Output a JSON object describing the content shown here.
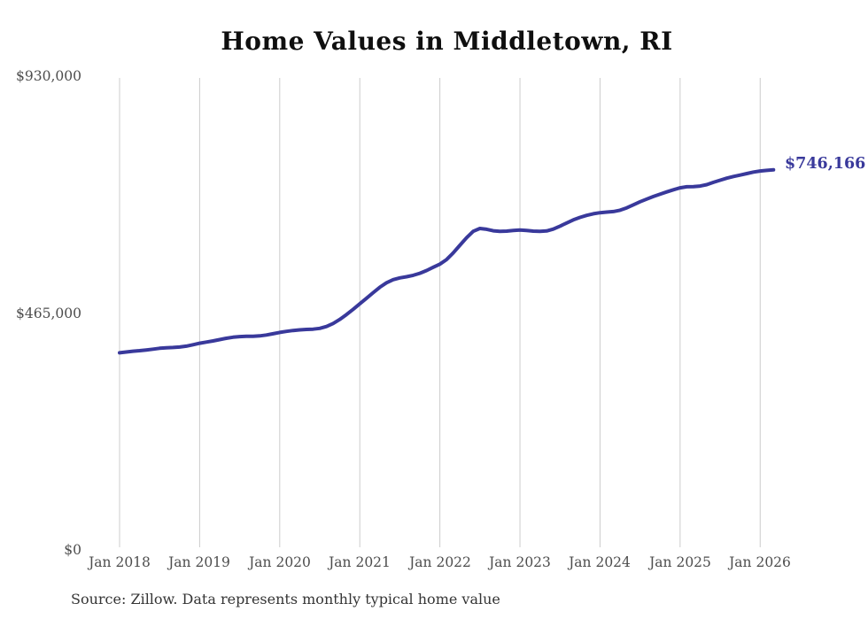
{
  "chart_data": {
    "type": "line",
    "title": "Home Values in Middletown, RI",
    "series_name": "Monthly typical home value",
    "x": [
      "2018-01",
      "2018-02",
      "2018-03",
      "2018-04",
      "2018-05",
      "2018-06",
      "2018-07",
      "2018-08",
      "2018-09",
      "2018-10",
      "2018-11",
      "2018-12",
      "2019-01",
      "2019-02",
      "2019-03",
      "2019-04",
      "2019-05",
      "2019-06",
      "2019-07",
      "2019-08",
      "2019-09",
      "2019-10",
      "2019-11",
      "2019-12",
      "2020-01",
      "2020-02",
      "2020-03",
      "2020-04",
      "2020-05",
      "2020-06",
      "2020-07",
      "2020-08",
      "2020-09",
      "2020-10",
      "2020-11",
      "2020-12",
      "2021-01",
      "2021-02",
      "2021-03",
      "2021-04",
      "2021-05",
      "2021-06",
      "2021-07",
      "2021-08",
      "2021-09",
      "2021-10",
      "2021-11",
      "2021-12",
      "2022-01",
      "2022-02",
      "2022-03",
      "2022-04",
      "2022-05",
      "2022-06",
      "2022-07",
      "2022-08",
      "2022-09",
      "2022-10",
      "2022-11",
      "2022-12",
      "2023-01",
      "2023-02",
      "2023-03",
      "2023-04",
      "2023-05",
      "2023-06",
      "2023-07",
      "2023-08",
      "2023-09",
      "2023-10",
      "2023-11",
      "2023-12",
      "2024-01",
      "2024-02",
      "2024-03",
      "2024-04",
      "2024-05",
      "2024-06",
      "2024-07",
      "2024-08",
      "2024-09",
      "2024-10",
      "2024-11",
      "2024-12",
      "2025-01",
      "2025-02",
      "2025-03",
      "2025-04",
      "2025-05",
      "2025-06",
      "2025-07",
      "2025-08",
      "2025-09",
      "2025-10",
      "2025-11",
      "2025-12",
      "2026-01",
      "2026-02",
      "2026-03"
    ],
    "values": [
      387000,
      388500,
      390000,
      391200,
      392500,
      394000,
      395800,
      396800,
      397300,
      398200,
      400000,
      402800,
      405800,
      408000,
      410200,
      412800,
      415500,
      417600,
      418800,
      419200,
      419400,
      420200,
      421900,
      424300,
      427000,
      429000,
      430800,
      432000,
      432800,
      433300,
      434900,
      438500,
      444500,
      452500,
      462000,
      472300,
      483000,
      494000,
      505000,
      515500,
      524500,
      530500,
      534000,
      536200,
      539000,
      543000,
      548500,
      554800,
      561000,
      570000,
      583000,
      598000,
      613000,
      625500,
      631000,
      629500,
      626500,
      625200,
      625800,
      627000,
      628000,
      627000,
      625800,
      625200,
      626200,
      629800,
      635500,
      641800,
      647800,
      652800,
      656800,
      659800,
      662000,
      663200,
      664200,
      666800,
      671500,
      677500,
      683500,
      688800,
      693800,
      698500,
      702800,
      707000,
      710800,
      712800,
      713200,
      714200,
      717000,
      721500,
      725800,
      729800,
      733000,
      735800,
      738800,
      741800,
      743800,
      745100,
      746166
    ],
    "latest_value": 746166,
    "end_label": "$746,166",
    "x_tick_labels": [
      "Jan 2018",
      "Jan 2019",
      "Jan 2020",
      "Jan 2021",
      "Jan 2022",
      "Jan 2023",
      "Jan 2024",
      "Jan 2025",
      "Jan 2026"
    ],
    "x_tick_indices": [
      0,
      12,
      24,
      36,
      48,
      60,
      72,
      84,
      96
    ],
    "y_ticks": [
      {
        "value": 0,
        "label": "$0"
      },
      {
        "value": 465000,
        "label": "$465,000"
      },
      {
        "value": 930000,
        "label": "$930,000"
      }
    ],
    "ylim": [
      0,
      930000
    ],
    "grid": "vertical-only",
    "legend": "none",
    "colors": {
      "line": "#39399b",
      "end_label": "#39399b",
      "gridline": "#cccccc",
      "tick_label": "#4d4d4d",
      "title": "#0f0f0f",
      "source": "#353535",
      "background": "#ffffff"
    }
  },
  "source_note": "Source: Zillow. Data represents monthly typical home value"
}
